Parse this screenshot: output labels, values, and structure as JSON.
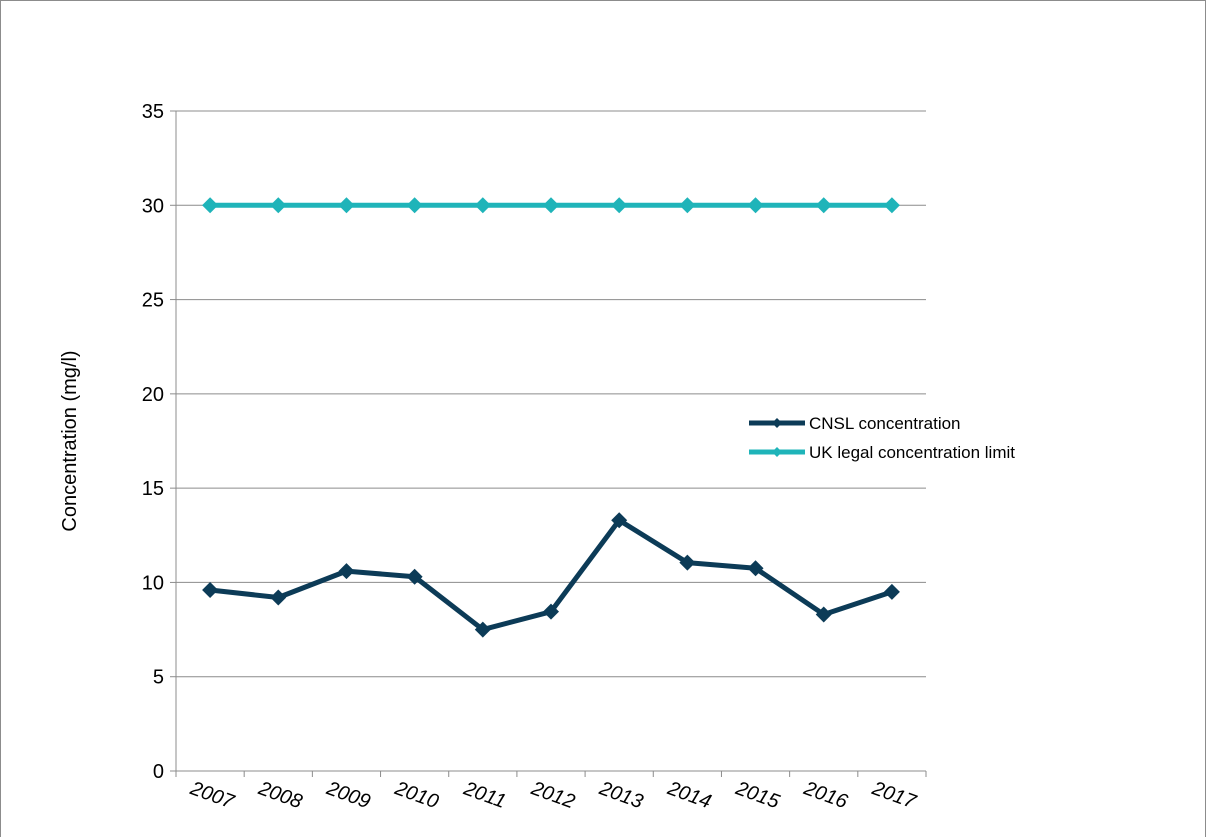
{
  "chart_data": {
    "type": "line",
    "title": "",
    "xlabel": "",
    "ylabel": "Concentration (mg/l)",
    "ylim": [
      0,
      35
    ],
    "y_ticks": [
      "0",
      "5",
      "10",
      "15",
      "20",
      "25",
      "30",
      "35"
    ],
    "categories": [
      "2007",
      "2008",
      "2009",
      "2010",
      "2011",
      "2012",
      "2013",
      "2014",
      "2015",
      "2016",
      "2017"
    ],
    "grid": "horizontal",
    "legend_position": "right",
    "series": [
      {
        "name": "CNSL concentration",
        "color": "#0c3b57",
        "marker": "diamond",
        "values": [
          9.6,
          9.2,
          10.6,
          10.3,
          7.5,
          8.45,
          13.3,
          11.05,
          10.75,
          8.3,
          9.5
        ]
      },
      {
        "name": "UK legal concentration limit",
        "color": "#1fb4b9",
        "marker": "diamond",
        "values": [
          30,
          30,
          30,
          30,
          30,
          30,
          30,
          30,
          30,
          30,
          30
        ]
      }
    ]
  }
}
